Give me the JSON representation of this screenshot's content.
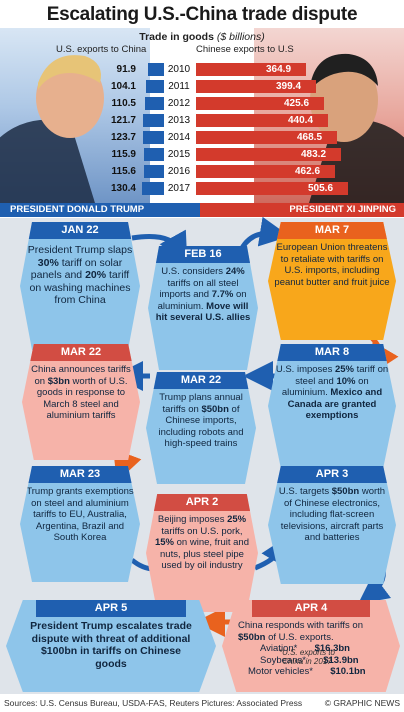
{
  "title": "Escalating U.S.-China trade dispute",
  "chart_data": {
    "type": "bar",
    "title": "Trade in goods",
    "units": "($ billions)",
    "categories": [
      "2010",
      "2011",
      "2012",
      "2013",
      "2014",
      "2015",
      "2016",
      "2017"
    ],
    "series": [
      {
        "name": "U.S. exports to China",
        "values": [
          91.9,
          104.1,
          110.5,
          121.7,
          123.7,
          115.9,
          115.6,
          130.4
        ],
        "color": "#1f5fb0"
      },
      {
        "name": "Chinese exports to U.S",
        "values": [
          364.9,
          399.4,
          425.6,
          440.4,
          468.5,
          483.2,
          462.6,
          505.6
        ],
        "color": "#d33a2c"
      }
    ]
  },
  "portraits": {
    "left_name": "PRESIDENT DONALD TRUMP",
    "right_name": "PRESIDENT XI JINPING"
  },
  "events": [
    {
      "date": "JAN 22",
      "text": [
        "President Trump slaps ",
        "30%",
        " tariff on solar panels and ",
        "20%",
        " tariff on washing machines from China"
      ]
    },
    {
      "date": "FEB 16",
      "text": [
        "U.S. considers ",
        "24%",
        " tariffs on all steel imports and ",
        "7.7%",
        " on aluminium. ",
        "Move will hit several U.S. allies",
        ""
      ]
    },
    {
      "date": "MAR 7",
      "text": [
        "European Union threatens to retaliate with tariffs on U.S. imports, including peanut butter and fruit juice"
      ]
    },
    {
      "date": "MAR 22",
      "text": [
        "China announces tariffs on ",
        "$3bn",
        " worth of U.S. goods in response to March 8 steel and aluminium tariffs"
      ]
    },
    {
      "date": "MAR 22",
      "text": [
        "Trump plans annual tariffs on ",
        "$50bn",
        " of Chinese imports, including robots and high-speed trains"
      ]
    },
    {
      "date": "MAR 8",
      "text": [
        "U.S. imposes ",
        "25%",
        " tariff on steel and ",
        "10%",
        " on aluminium. ",
        "Mexico and Canada are granted exemptions",
        ""
      ]
    },
    {
      "date": "MAR 23",
      "text": [
        "Trump grants exemptions on steel and aluminium tariffs to EU, Australia, Argentina, Brazil and South Korea"
      ]
    },
    {
      "date": "APR 2",
      "text": [
        "Beijing imposes ",
        "25%",
        " tariffs on U.S. pork, ",
        "15%",
        " on wine, fruit and nuts, plus steel pipe used by oil industry"
      ]
    },
    {
      "date": "APR 3",
      "text": [
        "U.S. targets ",
        "$50bn",
        " worth of Chinese electronics, including flat-screen televisions, aircraft parts and batteries"
      ]
    },
    {
      "date": "APR 5",
      "text": [
        "President Trump escalates trade dispute with threat of additional $100bn in tariffs on Chinese goods"
      ]
    },
    {
      "date": "APR 4",
      "intro": [
        "China responds with tariffs on ",
        "$50bn",
        " of U.S. exports."
      ],
      "items": [
        {
          "label": "Aviation*",
          "value": "$16.3bn"
        },
        {
          "label": "Soybeans*",
          "value": "$13.9bn"
        },
        {
          "label": "Motor vehicles*",
          "value": "$10.1bn"
        }
      ]
    }
  ],
  "footnote": "*U.S. exports to China in 2017",
  "footer": {
    "sources": "Sources: U.S. Census Bureau, USDA-FAS, Reuters  Pictures: Associated Press",
    "credit": "© GRAPHIC NEWS"
  }
}
